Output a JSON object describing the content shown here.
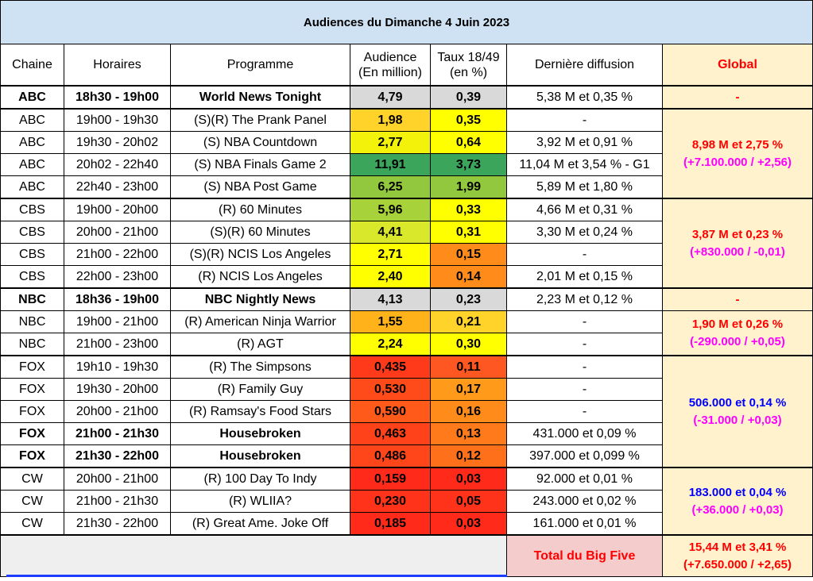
{
  "title": "Audiences du Dimanche 4 Juin 2023",
  "headers": {
    "chaine": "Chaine",
    "horaires": "Horaires",
    "programme": "Programme",
    "audience_l1": "Audience",
    "audience_l2": "(En million)",
    "taux_l1": "Taux 18/49",
    "taux_l2": "(en %)",
    "derniere": "Dernière diffusion",
    "global": "Global"
  },
  "rows": [
    {
      "chaine": "ABC",
      "horaires": "18h30 - 19h00",
      "programme": "World News Tonight",
      "audience": "4,79",
      "taux": "0,39",
      "derniere": "5,38 M et 0,35 %"
    },
    {
      "chaine": "ABC",
      "horaires": "19h00 - 19h30",
      "programme": "(S)(R) The Prank Panel",
      "audience": "1,98",
      "taux": "0,35",
      "derniere": "-"
    },
    {
      "chaine": "ABC",
      "horaires": "19h30 - 20h02",
      "programme": "(S) NBA Countdown",
      "audience": "2,77",
      "taux": "0,64",
      "derniere": "3,92 M et 0,91 %"
    },
    {
      "chaine": "ABC",
      "horaires": "20h02 - 22h40",
      "programme": "(S) NBA Finals Game 2",
      "audience": "11,91",
      "taux": "3,73",
      "derniere": "11,04 M et 3,54 % - G1"
    },
    {
      "chaine": "ABC",
      "horaires": "22h40 - 23h00",
      "programme": "(S) NBA Post Game",
      "audience": "6,25",
      "taux": "1,99",
      "derniere": "5,89 M et 1,80 %"
    },
    {
      "chaine": "CBS",
      "horaires": "19h00 - 20h00",
      "programme": "(R) 60 Minutes",
      "audience": "5,96",
      "taux": "0,33",
      "derniere": "4,66 M et 0,31 %"
    },
    {
      "chaine": "CBS",
      "horaires": "20h00 - 21h00",
      "programme": "(S)(R) 60 Minutes",
      "audience": "4,41",
      "taux": "0,31",
      "derniere": "3,30 M et 0,24 %"
    },
    {
      "chaine": "CBS",
      "horaires": "21h00 - 22h00",
      "programme": "(S)(R) NCIS Los Angeles",
      "audience": "2,71",
      "taux": "0,15",
      "derniere": "-"
    },
    {
      "chaine": "CBS",
      "horaires": "22h00 - 23h00",
      "programme": "(R) NCIS Los Angeles",
      "audience": "2,40",
      "taux": "0,14",
      "derniere": "2,01 M et 0,15 %"
    },
    {
      "chaine": "NBC",
      "horaires": "18h36 - 19h00",
      "programme": "NBC Nightly News",
      "audience": "4,13",
      "taux": "0,23",
      "derniere": "2,23 M et 0,12 %"
    },
    {
      "chaine": "NBC",
      "horaires": "19h00 - 21h00",
      "programme": "(R) American Ninja Warrior",
      "audience": "1,55",
      "taux": "0,21",
      "derniere": "-"
    },
    {
      "chaine": "NBC",
      "horaires": "21h00 - 23h00",
      "programme": "(R) AGT",
      "audience": "2,24",
      "taux": "0,30",
      "derniere": "-"
    },
    {
      "chaine": "FOX",
      "horaires": "19h10 - 19h30",
      "programme": "(R) The Simpsons",
      "audience": "0,435",
      "taux": "0,11",
      "derniere": "-"
    },
    {
      "chaine": "FOX",
      "horaires": "19h30 - 20h00",
      "programme": "(R) Family Guy",
      "audience": "0,530",
      "taux": "0,17",
      "derniere": "-"
    },
    {
      "chaine": "FOX",
      "horaires": "20h00 - 21h00",
      "programme": "(R) Ramsay's Food Stars",
      "audience": "0,590",
      "taux": "0,16",
      "derniere": "-"
    },
    {
      "chaine": "FOX",
      "horaires": "21h00 - 21h30",
      "programme": "Housebroken",
      "audience": "0,463",
      "taux": "0,13",
      "derniere": "431.000 et 0,09 %"
    },
    {
      "chaine": "FOX",
      "horaires": "21h30 - 22h00",
      "programme": "Housebroken",
      "audience": "0,486",
      "taux": "0,12",
      "derniere": "397.000 et 0,099 %"
    },
    {
      "chaine": "CW",
      "horaires": "20h00 - 21h00",
      "programme": "(R) 100 Day To Indy",
      "audience": "0,159",
      "taux": "0,03",
      "derniere": "92.000 et 0,01 %"
    },
    {
      "chaine": "CW",
      "horaires": "21h00 - 21h30",
      "programme": "(R) WLIIA?",
      "audience": "0,230",
      "taux": "0,05",
      "derniere": "243.000 et 0,02 %"
    },
    {
      "chaine": "CW",
      "horaires": "21h30 - 22h00",
      "programme": "(R) Great Ame. Joke Off",
      "audience": "0,185",
      "taux": "0,03",
      "derniere": "161.000 et 0,01 %"
    }
  ],
  "globals": {
    "abc_news": "-",
    "abc_main": "8,98 M et 2,75 %",
    "abc_diff": "(+7.100.000 / +2,56)",
    "cbs_main": "3,87 M et 0,23 %",
    "cbs_diff": "(+830.000 / -0,01)",
    "nbc_news": "-",
    "nbc_main": "1,90 M et 0,26 %",
    "nbc_diff": "(-290.000 / +0,05)",
    "fox_main": "506.000 et 0,14 %",
    "fox_diff": "(-31.000 / +0,03)",
    "cw_main": "183.000 et 0,04 %",
    "cw_diff": "(+36.000 / +0,03)"
  },
  "total": {
    "label": "Total du Big Five",
    "main": "15,44 M et 3,41 %",
    "diff": "(+7.650.000 / +2,65)"
  },
  "colors": {
    "title_bg": "#cfe2f3",
    "global_bg": "#fff2cc",
    "grey": "#d9d9d9",
    "yellow": "#ffff00",
    "yellow_orange": "#ffd966",
    "light_green": "#d9ea3b",
    "green": "#92c83e",
    "dark_green": "#3ca55c",
    "orange": "#ff8c1a",
    "red_orange": "#ff5722",
    "red": "#ff2a1a",
    "total_bg": "#f4cccc"
  }
}
